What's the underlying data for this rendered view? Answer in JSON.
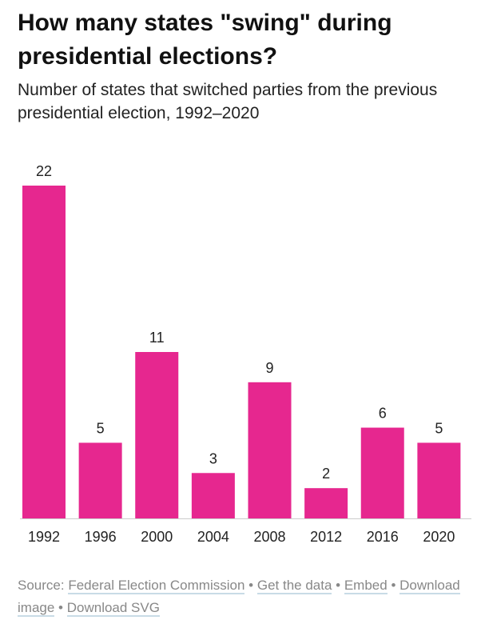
{
  "title": "How many states \"swing\" during presidential elections?",
  "subtitle": "Number of states that switched parties from the previous presidential election, 1992–2020",
  "colors": {
    "bar": "#e6278f",
    "axis": "#cccccc",
    "link_underline": "#c8dbe6"
  },
  "chart_data": {
    "type": "bar",
    "categories": [
      "1992",
      "1996",
      "2000",
      "2004",
      "2008",
      "2012",
      "2016",
      "2020"
    ],
    "values": [
      22,
      5,
      11,
      3,
      9,
      2,
      6,
      5
    ],
    "title": "How many states \"swing\" during presidential elections?",
    "subtitle": "Number of states that switched parties from the previous presidential election, 1992–2020",
    "xlabel": "",
    "ylabel": "",
    "ylim": [
      0,
      22
    ],
    "grid": false,
    "legend": "none",
    "data_labels": true
  },
  "footer": {
    "source_prefix": "Source:",
    "source_link": "Federal Election Commission",
    "get_data": "Get the data",
    "embed": "Embed",
    "download_image": "Download image",
    "download_svg": "Download SVG",
    "separator": "•"
  }
}
